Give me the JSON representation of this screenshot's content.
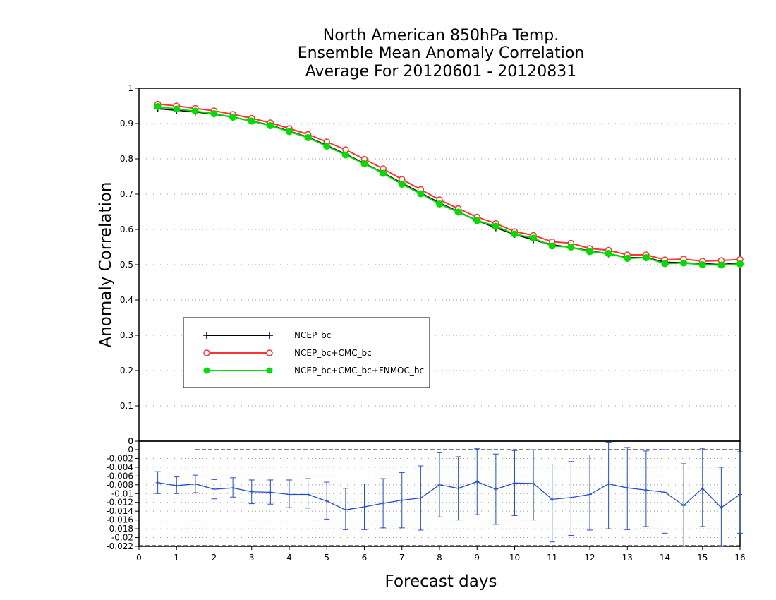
{
  "title": {
    "line1": "North American 850hPa Temp.",
    "line2": "Ensemble Mean Anomaly Correlation",
    "line3": "Average For 20120601 - 20120831"
  },
  "chart_data": [
    {
      "type": "line",
      "ylabel": "Anomaly Correlation",
      "xlabel": "Forecast days",
      "xlim": [
        0,
        16
      ],
      "ylim": [
        0,
        1
      ],
      "x_ticks": [
        0,
        1,
        2,
        3,
        4,
        5,
        6,
        7,
        8,
        9,
        10,
        11,
        12,
        13,
        14,
        15,
        16
      ],
      "y_ticks": [
        "1",
        "0.9",
        "0.8",
        "0.7",
        "0.6",
        "0.5",
        "0.4",
        "0.3",
        "0.2",
        "0.1",
        "0"
      ],
      "y_tick_values": [
        1,
        0.9,
        0.8,
        0.7,
        0.6,
        0.5,
        0.4,
        0.3,
        0.2,
        0.1,
        0
      ],
      "grid": "horizontal dotted",
      "legend_position": "lower-left",
      "x": [
        0.5,
        1,
        1.5,
        2,
        2.5,
        3,
        3.5,
        4,
        4.5,
        5,
        5.5,
        6,
        6.5,
        7,
        7.5,
        8,
        8.5,
        9,
        9.5,
        10,
        10.5,
        11,
        11.5,
        12,
        12.5,
        13,
        13.5,
        14,
        14.5,
        15,
        15.5,
        16
      ],
      "series": [
        {
          "name": "NCEP_bc",
          "color": "#000000",
          "marker": "plus",
          "values": [
            0.942,
            0.938,
            0.933,
            0.927,
            0.918,
            0.907,
            0.895,
            0.878,
            0.861,
            0.838,
            0.813,
            0.787,
            0.76,
            0.731,
            0.703,
            0.675,
            0.65,
            0.625,
            0.605,
            0.586,
            0.571,
            0.556,
            0.549,
            0.539,
            0.531,
            0.52,
            0.52,
            0.507,
            0.505,
            0.503,
            0.5,
            0.505
          ]
        },
        {
          "name": "NCEP_bc+CMC_bc",
          "color": "#ff3333",
          "marker": "open-circle",
          "values": [
            0.955,
            0.95,
            0.943,
            0.936,
            0.926,
            0.915,
            0.902,
            0.886,
            0.869,
            0.848,
            0.826,
            0.799,
            0.772,
            0.742,
            0.713,
            0.684,
            0.659,
            0.635,
            0.617,
            0.594,
            0.583,
            0.565,
            0.561,
            0.546,
            0.541,
            0.528,
            0.528,
            0.514,
            0.516,
            0.51,
            0.512,
            0.515
          ]
        },
        {
          "name": "NCEP_bc+CMC_bc+FNMOC_bc",
          "color": "#00dd00",
          "marker": "filled-circle",
          "values": [
            0.948,
            0.941,
            0.935,
            0.928,
            0.918,
            0.907,
            0.894,
            0.877,
            0.86,
            0.836,
            0.811,
            0.786,
            0.759,
            0.728,
            0.701,
            0.672,
            0.649,
            0.625,
            0.609,
            0.587,
            0.575,
            0.553,
            0.55,
            0.537,
            0.532,
            0.518,
            0.52,
            0.503,
            0.505,
            0.5,
            0.499,
            0.502
          ]
        }
      ]
    },
    {
      "type": "line",
      "xlim": [
        0,
        16
      ],
      "ylim": [
        -0.022,
        0
      ],
      "y_ticks": [
        "0",
        "0",
        "-0.002",
        "-0.004",
        "-0.006",
        "-0.008",
        "-0.01",
        "-0.012",
        "-0.014",
        "-0.016",
        "-0.018",
        "-0.02",
        "-0.022"
      ],
      "y_tick_values": [
        0.0018,
        0,
        -0.002,
        -0.004,
        -0.006,
        -0.008,
        -0.01,
        -0.012,
        -0.014,
        -0.016,
        -0.018,
        -0.02,
        -0.022
      ],
      "zero_line": 0,
      "grid": "horizontal dotted",
      "series": [
        {
          "name": "",
          "color": "#1f4fd8",
          "marker": "plus-with-error-bars",
          "x": [
            0.5,
            1,
            1.5,
            2,
            2.5,
            3,
            3.5,
            4,
            4.5,
            5,
            5.5,
            6,
            6.5,
            7,
            7.5,
            8,
            8.5,
            9,
            9.5,
            10,
            10.5,
            11,
            11.5,
            12,
            12.5,
            13,
            13.5,
            14,
            14.5,
            15,
            15.5,
            16
          ],
          "values": [
            -0.0075,
            -0.0082,
            -0.0078,
            -0.009,
            -0.0087,
            -0.0096,
            -0.0097,
            -0.0102,
            -0.0102,
            -0.0117,
            -0.0137,
            -0.013,
            -0.0122,
            -0.0115,
            -0.011,
            -0.008,
            -0.0088,
            -0.0073,
            -0.009,
            -0.0076,
            -0.0077,
            -0.0113,
            -0.0109,
            -0.0102,
            -0.0078,
            -0.0087,
            -0.0092,
            -0.0097,
            -0.0127,
            -0.0088,
            -0.0132,
            -0.0102
          ],
          "lower": [
            -0.01,
            -0.01,
            -0.0098,
            -0.0112,
            -0.0108,
            -0.0123,
            -0.0124,
            -0.0132,
            -0.0133,
            -0.0158,
            -0.0182,
            -0.0182,
            -0.0178,
            -0.0178,
            -0.0183,
            -0.0153,
            -0.016,
            -0.0148,
            -0.017,
            -0.015,
            -0.016,
            -0.021,
            -0.0195,
            -0.0183,
            -0.018,
            -0.0182,
            -0.0175,
            -0.019,
            -0.022,
            -0.0175,
            -0.022,
            -0.019
          ],
          "upper": [
            -0.005,
            -0.0062,
            -0.0058,
            -0.0068,
            -0.0064,
            -0.0069,
            -0.0069,
            -0.0069,
            -0.0066,
            -0.0074,
            -0.0088,
            -0.0078,
            -0.0066,
            -0.0052,
            -0.0037,
            -0.0007,
            -0.0016,
            0.0002,
            -0.001,
            -0.0002,
            0,
            -0.0033,
            -0.0027,
            -0.0012,
            0.0017,
            0.0005,
            -0.0003,
            0,
            -0.0032,
            0.0003,
            -0.004,
            -0.0005
          ]
        }
      ]
    }
  ]
}
